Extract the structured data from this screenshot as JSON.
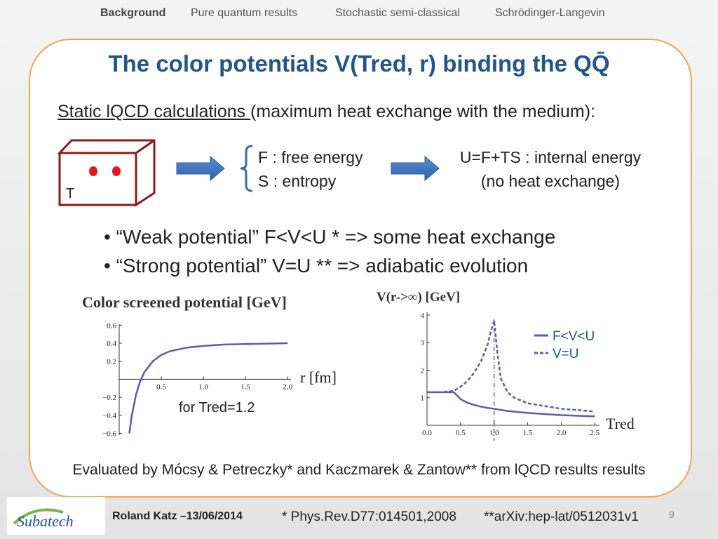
{
  "nav": [
    "Background",
    "Pure quantum results",
    "Stochastic semi-classical",
    "Schrödinger-Langevin"
  ],
  "title": "The color potentials V(Tred, r) binding the QQ̄",
  "intro": {
    "underlined": "Static lQCD calculations ",
    "rest": "(maximum heat exchange with the medium):"
  },
  "diagram": {
    "box_label": "T",
    "free_energy": "F : free energy",
    "entropy": "S : entropy",
    "internal_energy": "U=F+TS : internal energy",
    "note": "(no heat exchange)"
  },
  "bullets": [
    "“Weak potential” F<V<U * => some heat exchange",
    "“Strong potential” V=U ** => adiabatic evolution"
  ],
  "plots": [
    {
      "title": "Color screened potential [GeV]",
      "xlabel": "r [fm]",
      "annotation": "for Tred=1.2",
      "xlim": [
        0,
        2.04
      ],
      "ylim": [
        -0.62,
        0.61
      ],
      "xticks": [
        0.5,
        {
          "value": 1,
          "label": "1.0"
        },
        1.5,
        {
          "value": 2,
          "label": "2.0"
        }
      ],
      "yticks": [
        0.6,
        0.4,
        0.2,
        {
          "value": -0.2,
          "label": "−0.2"
        },
        {
          "value": -0.4,
          "label": "−0.4"
        },
        {
          "value": -0.6,
          "label": "−0.6"
        }
      ],
      "series": [
        {
          "color": "#5a5ab4",
          "x": [
            0.12,
            0.15,
            0.2,
            0.25,
            0.3,
            0.4,
            0.5,
            0.6,
            0.8,
            1.0,
            1.25,
            1.5,
            1.75,
            2.0
          ],
          "values": [
            -0.6,
            -0.4,
            -0.17,
            -0.02,
            0.08,
            0.2,
            0.27,
            0.31,
            0.35,
            0.37,
            0.385,
            0.39,
            0.395,
            0.4
          ]
        }
      ]
    },
    {
      "title": "V(r->∞) [GeV]",
      "xlabel": "Tred",
      "marker_x": 1,
      "xlim": [
        0,
        2.57
      ],
      "ylim": [
        0,
        4.1
      ],
      "xticks": [
        {
          "value": 0,
          "label": "0.0"
        },
        0.5,
        {
          "value": 1,
          "label": "1.0"
        },
        1.5,
        {
          "value": 2,
          "label": "2.0"
        },
        2.5
      ],
      "yticks": [
        1,
        2,
        3,
        4
      ],
      "series": [
        {
          "name": "F<V<U",
          "color": "#5a5ab4",
          "dashed": false,
          "x": [
            0,
            0.2,
            0.4,
            0.5,
            0.6,
            0.7,
            0.8,
            0.9,
            1.0,
            1.2,
            1.5,
            2.0,
            2.5
          ],
          "values": [
            1.2,
            1.2,
            1.2,
            0.95,
            0.82,
            0.74,
            0.68,
            0.63,
            0.6,
            0.52,
            0.45,
            0.37,
            0.32
          ]
        },
        {
          "name": "V=U",
          "color": "#5a5ab4",
          "dashed": true,
          "x": [
            0,
            0.2,
            0.4,
            0.5,
            0.6,
            0.7,
            0.8,
            0.9,
            0.95,
            1.0,
            1.05,
            1.1,
            1.2,
            1.3,
            1.5,
            2.0,
            2.5
          ],
          "values": [
            1.2,
            1.2,
            1.25,
            1.4,
            1.6,
            1.9,
            2.3,
            2.9,
            3.4,
            3.8,
            2.6,
            1.7,
            1.2,
            1.0,
            0.8,
            0.6,
            0.5
          ]
        }
      ]
    }
  ],
  "footnote": "Evaluated by Mócsy & Petreczky* and Kaczmarek & Zantow** from lQCD results results",
  "footer": {
    "logo": "Subatech",
    "author": "Roland Katz –13/06/2014",
    "ref1": "* Phys.Rev.D77:014501,2008",
    "ref2": "**arXiv:hep-lat/0512031v1",
    "page": "9"
  }
}
